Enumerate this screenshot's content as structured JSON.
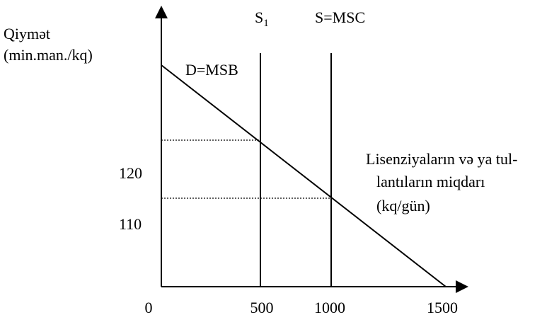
{
  "y_axis_label": [
    "Qiymət",
    "(min.man./kq)"
  ],
  "x_axis_label": [
    "Lisenziyaların və ya tul-",
    "lantıların miqdarı",
    "(kq/gün)"
  ],
  "curves": [
    {
      "label": "D=MSB"
    },
    {
      "label": "S",
      "subscript": "1"
    },
    {
      "label": "S=MSC"
    }
  ],
  "x_ticks": [
    0,
    500,
    1000,
    1500
  ],
  "y_ticks": [
    110,
    120
  ]
}
